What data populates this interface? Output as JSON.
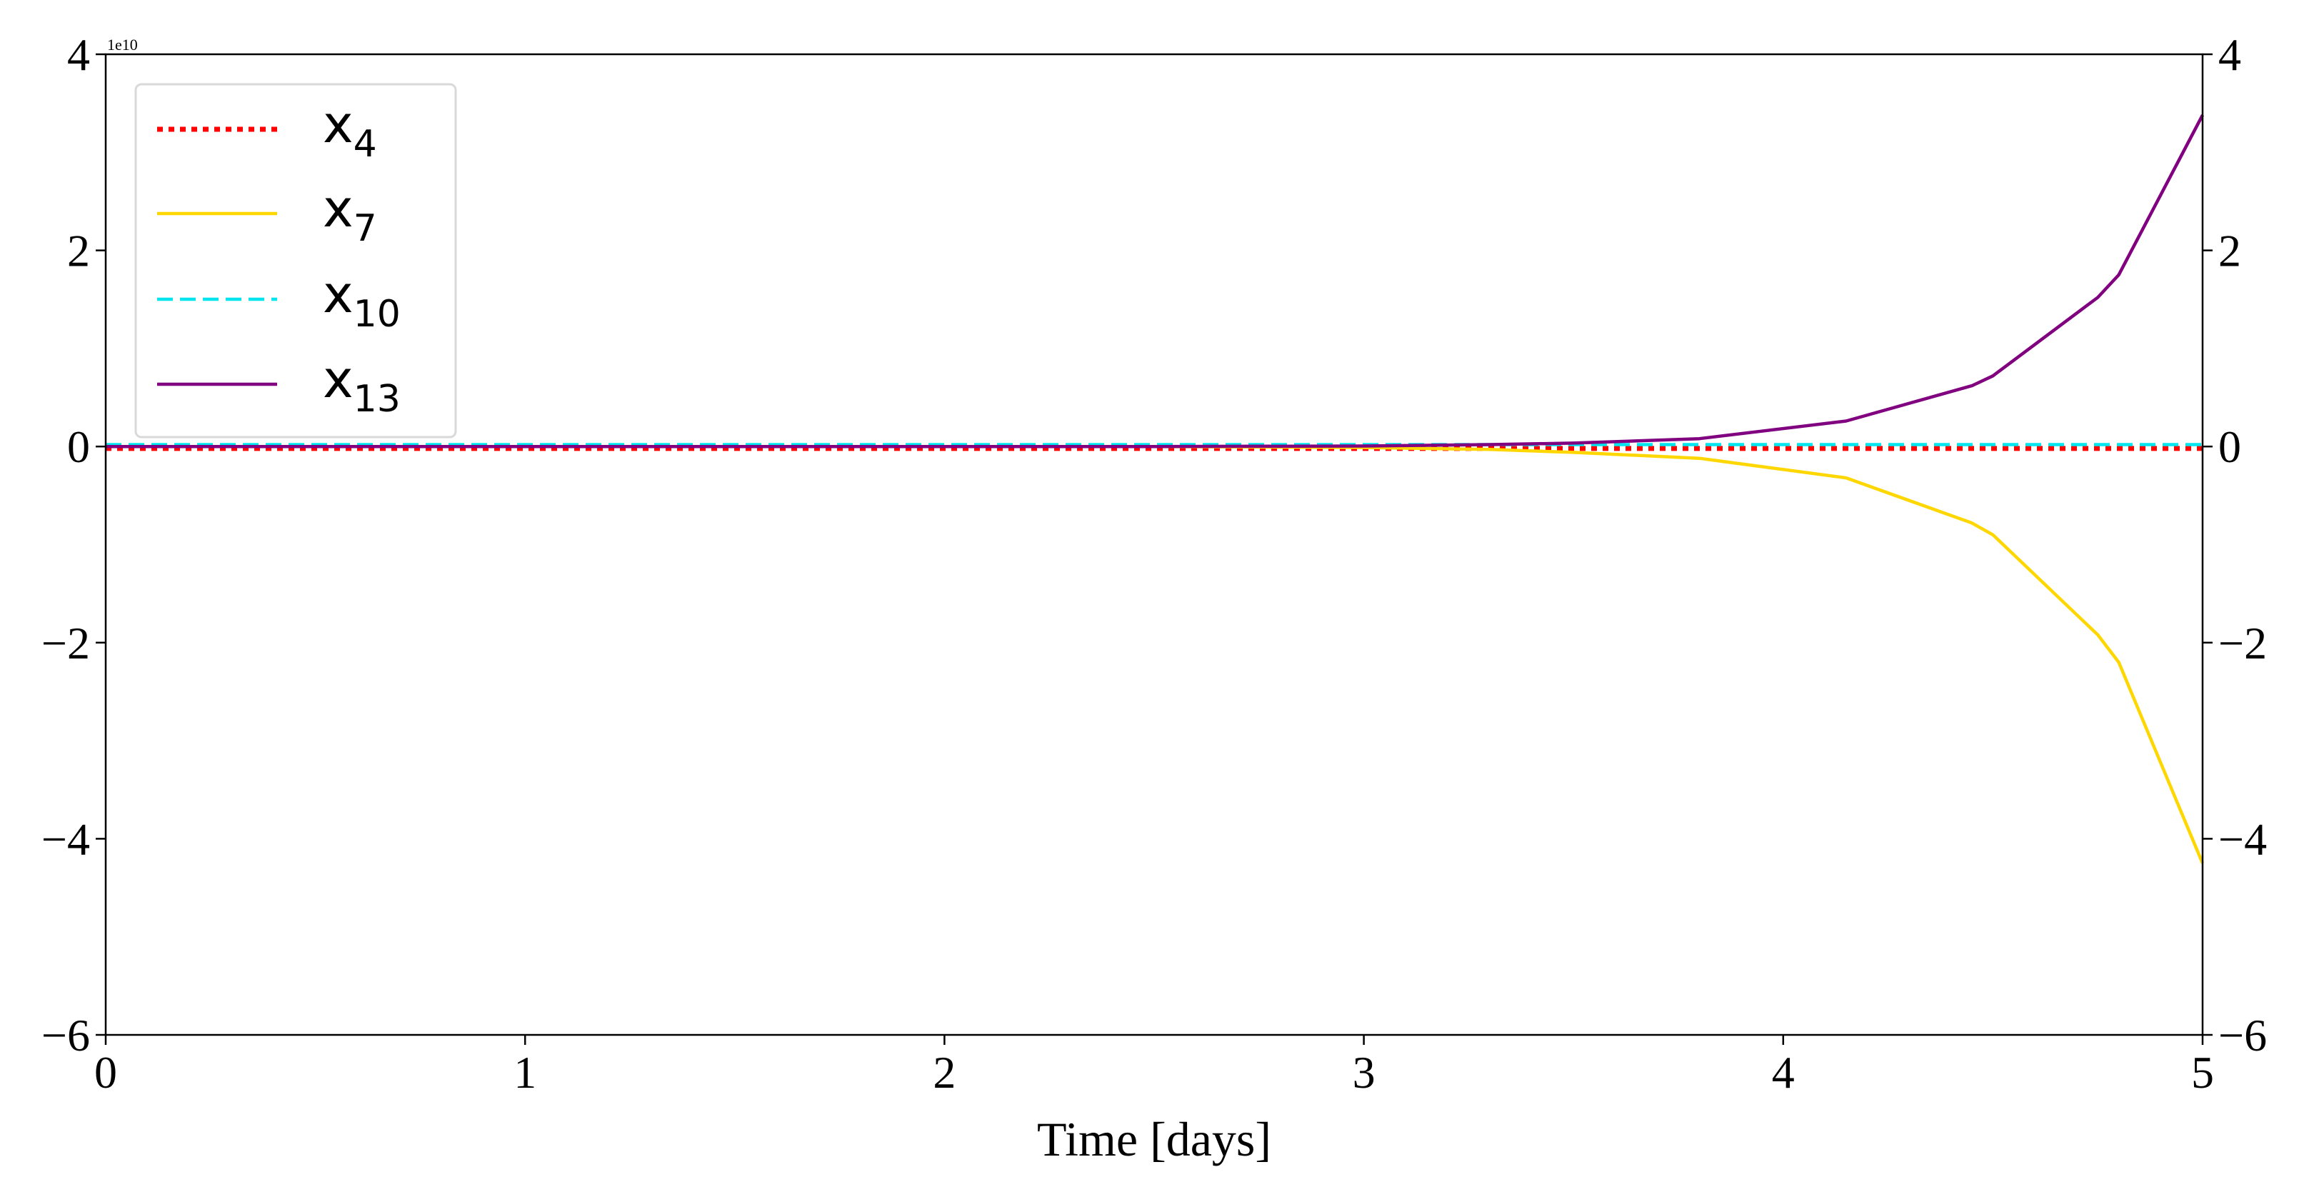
{
  "chart_data": {
    "type": "line",
    "xlabel": "Time [days]",
    "ylabel": "",
    "y_offset_label": "1e10",
    "xlim": [
      0,
      5
    ],
    "ylim": [
      -6,
      4
    ],
    "x_ticks": [
      0,
      1,
      2,
      3,
      4,
      5
    ],
    "y_ticks": [
      -6,
      -4,
      -2,
      0,
      2,
      4
    ],
    "x_tick_labels": [
      "0",
      "1",
      "2",
      "3",
      "4",
      "5"
    ],
    "y_tick_labels": [
      "−6",
      "−4",
      "−2",
      "0",
      "2",
      "4"
    ],
    "y_tick_labels_right": [
      "−6",
      "−4",
      "−2",
      "0",
      "2",
      "4"
    ],
    "grid": false,
    "legend_position": "top-left",
    "series": [
      {
        "name": "x4",
        "base": "x",
        "sub": "4",
        "color": "#ff0000",
        "style": "dotted",
        "x": [
          0,
          1,
          2,
          3,
          4,
          5
        ],
        "y": [
          -0.02,
          -0.02,
          -0.02,
          -0.02,
          -0.02,
          -0.02
        ]
      },
      {
        "name": "x7",
        "base": "x",
        "sub": "7",
        "color": "#ffd700",
        "style": "solid",
        "x": [
          0,
          0.5,
          1,
          1.5,
          2,
          2.5,
          3,
          3.3,
          3.5,
          3.8,
          4.15,
          4.45,
          4.5,
          4.75,
          4.8,
          5.0
        ],
        "y": [
          0,
          0,
          0,
          0,
          0,
          0,
          -0.01,
          -0.03,
          -0.06,
          -0.12,
          -0.32,
          -0.78,
          -0.9,
          -1.92,
          -2.2,
          -4.25
        ]
      },
      {
        "name": "x10",
        "base": "x",
        "sub": "10",
        "color": "#00e5ee",
        "style": "dashed",
        "x": [
          0,
          1,
          2,
          3,
          4,
          5
        ],
        "y": [
          0.02,
          0.02,
          0.02,
          0.02,
          0.02,
          0.02
        ]
      },
      {
        "name": "x13",
        "base": "x",
        "sub": "13",
        "color": "#800080",
        "style": "solid",
        "x": [
          0,
          0.5,
          1,
          1.5,
          2,
          2.5,
          3,
          3.3,
          3.5,
          3.8,
          4.15,
          4.45,
          4.5,
          4.75,
          4.8,
          5.0
        ],
        "y": [
          0,
          0,
          0,
          0,
          0,
          0,
          0.005,
          0.02,
          0.035,
          0.08,
          0.26,
          0.62,
          0.72,
          1.52,
          1.75,
          3.38
        ]
      }
    ]
  }
}
